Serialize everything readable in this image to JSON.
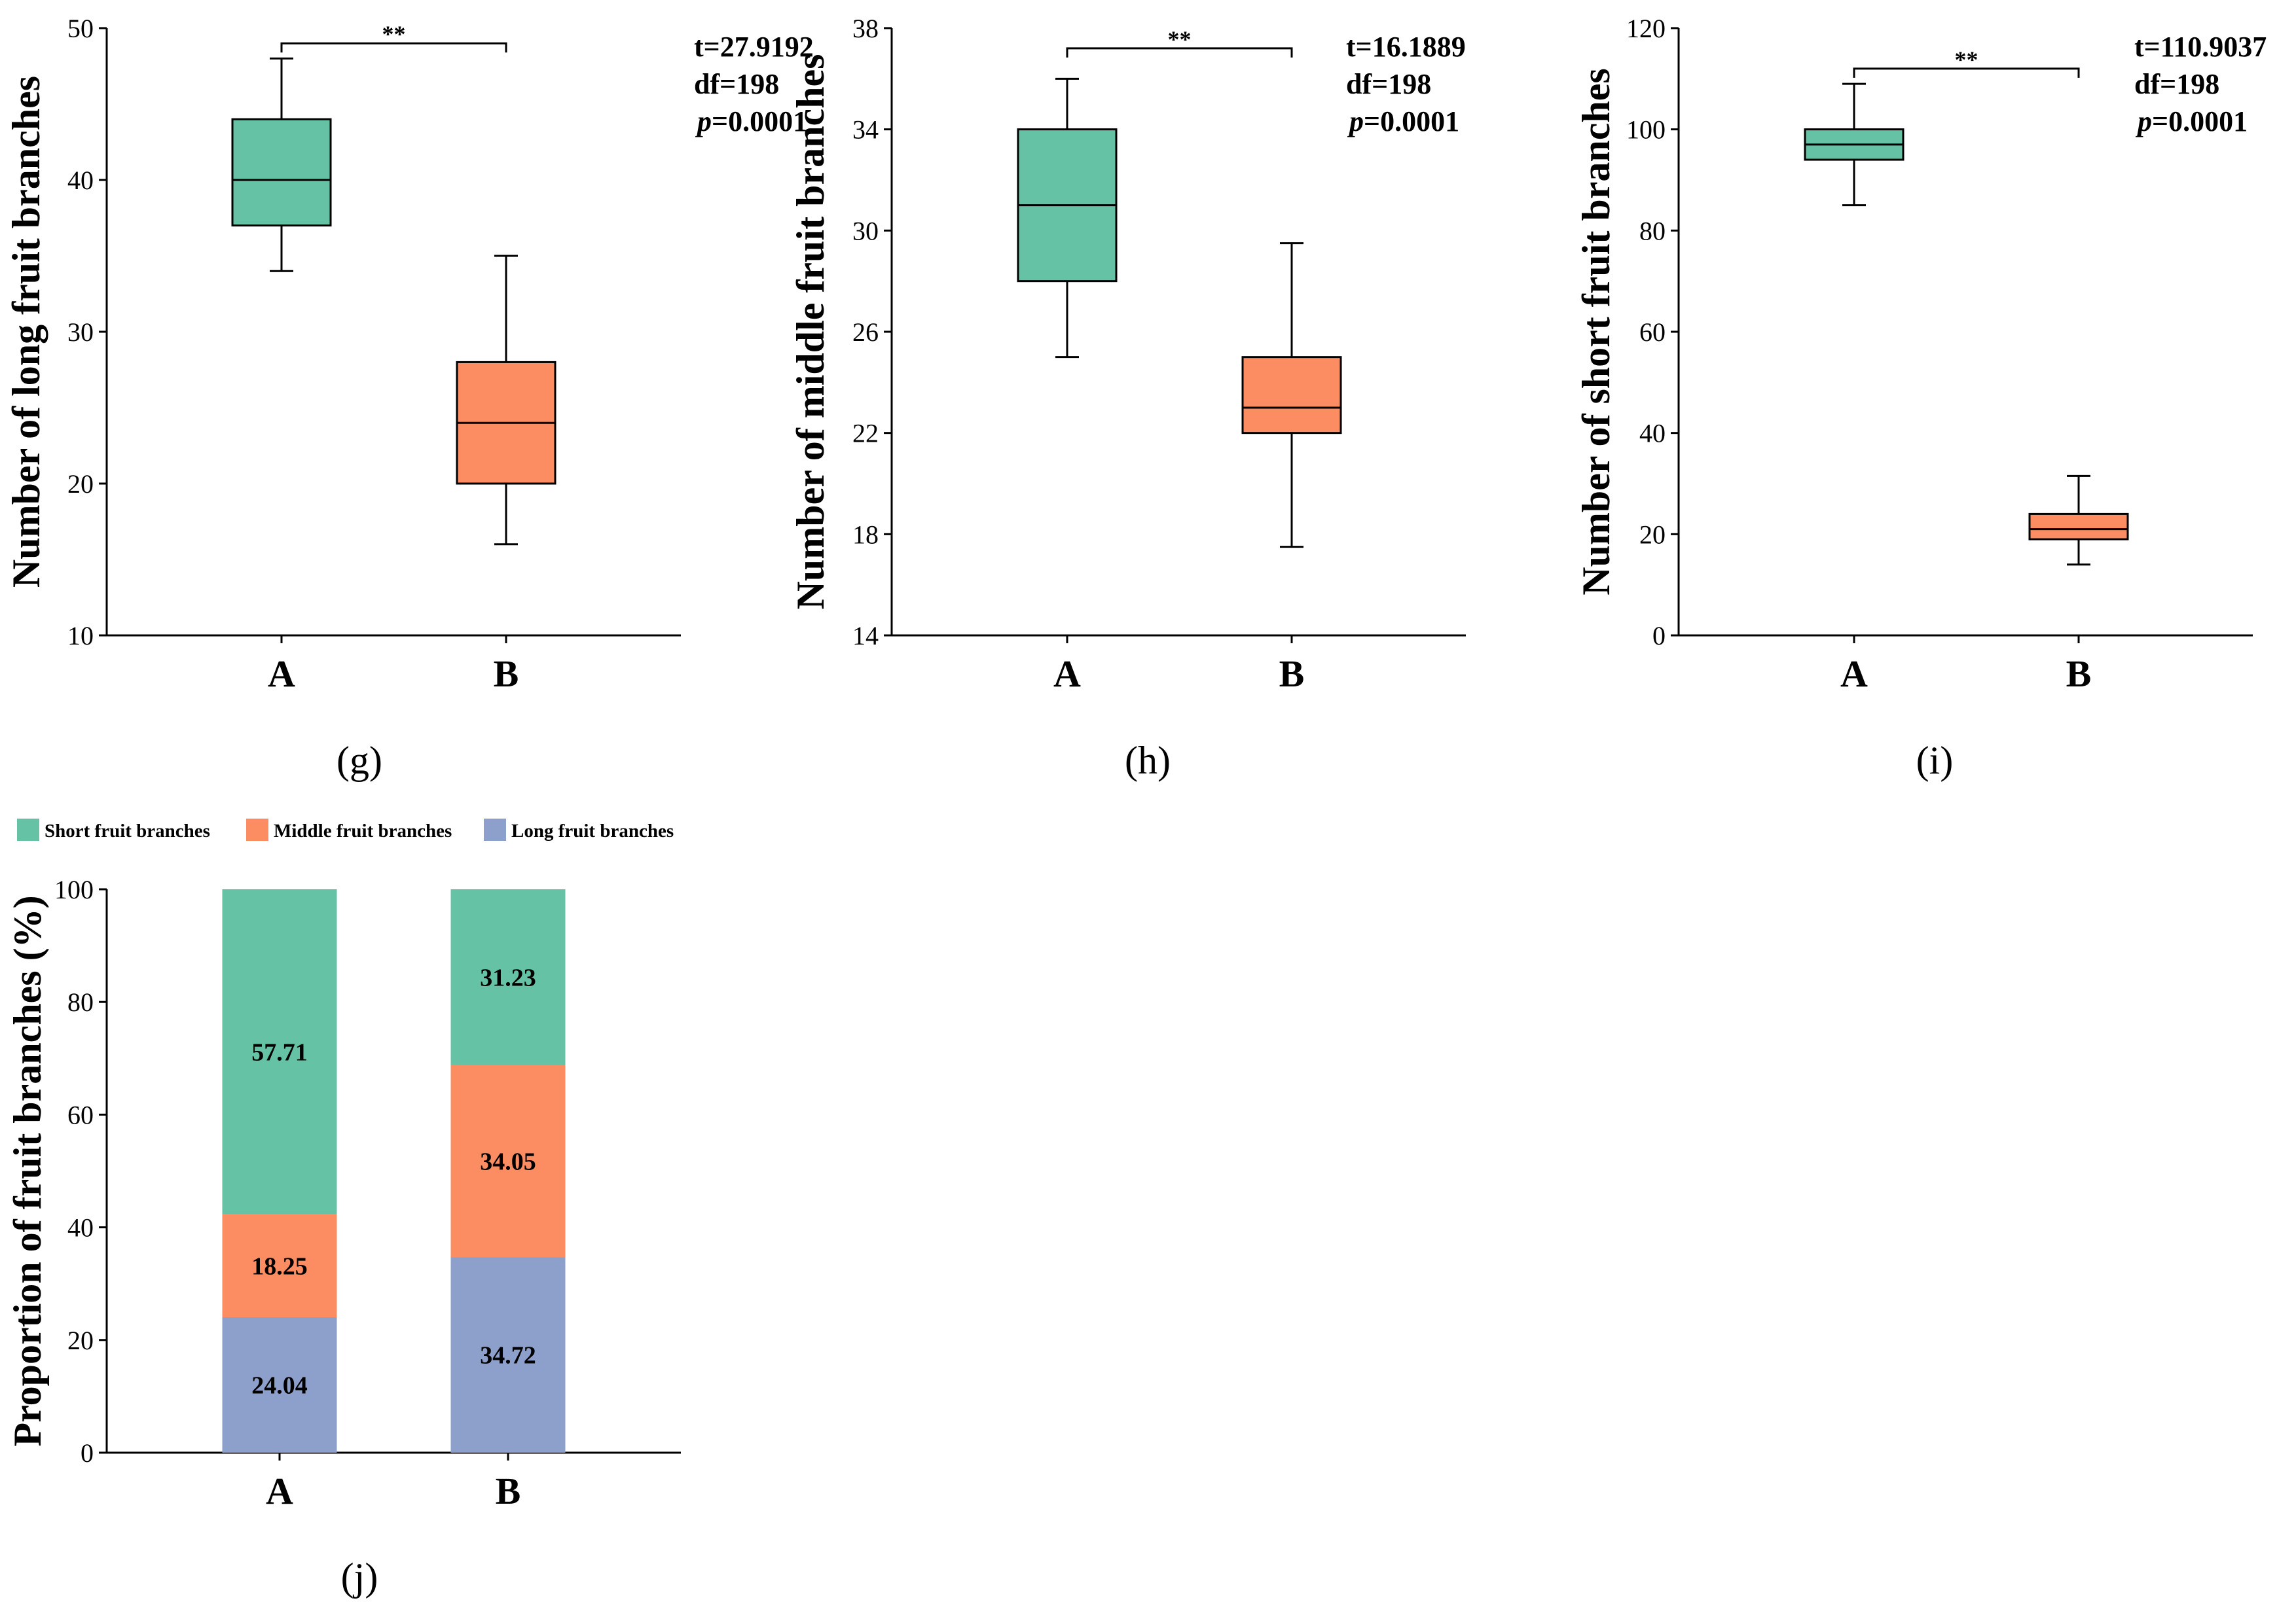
{
  "colors": {
    "group_A": "#66C2A5",
    "group_B": "#FC8D62",
    "long": "#8DA0CB",
    "axis": "#000000"
  },
  "chart_data": [
    {
      "id": "g",
      "type": "box",
      "panel_label": "(g)",
      "ylabel": "Number of long fruit branches",
      "ylim": [
        10,
        50
      ],
      "yticks": [
        10,
        20,
        30,
        40,
        50
      ],
      "categories": [
        "A",
        "B"
      ],
      "boxes": [
        {
          "group": "A",
          "min": 34,
          "q1": 37,
          "median": 40,
          "q3": 44,
          "max": 48
        },
        {
          "group": "B",
          "min": 16,
          "q1": 20,
          "median": 24,
          "q3": 28,
          "max": 35
        }
      ],
      "bracket_y": 49,
      "significance": "**",
      "stats": {
        "t": "t=27.9192",
        "df": "df=198",
        "p_prefix": "p",
        "p_value": "=0.0001"
      }
    },
    {
      "id": "h",
      "type": "box",
      "panel_label": "(h)",
      "ylabel": "Number of middle fruit branches",
      "ylim": [
        14,
        38
      ],
      "yticks": [
        14,
        18,
        22,
        26,
        30,
        34,
        38
      ],
      "categories": [
        "A",
        "B"
      ],
      "boxes": [
        {
          "group": "A",
          "min": 25,
          "q1": 28,
          "median": 31,
          "q3": 34,
          "max": 36
        },
        {
          "group": "B",
          "min": 17.5,
          "q1": 22,
          "median": 23,
          "q3": 25,
          "max": 29.5
        }
      ],
      "bracket_y": 37.2,
      "significance": "**",
      "stats": {
        "t": "t=16.1889",
        "df": "df=198",
        "p_prefix": "p",
        "p_value": "=0.0001"
      }
    },
    {
      "id": "i",
      "type": "box",
      "panel_label": "(i)",
      "ylabel": "Number of short fruit branches",
      "ylim": [
        0,
        120
      ],
      "yticks": [
        0,
        20,
        40,
        60,
        80,
        100,
        120
      ],
      "categories": [
        "A",
        "B"
      ],
      "boxes": [
        {
          "group": "A",
          "min": 85,
          "q1": 94,
          "median": 97,
          "q3": 100,
          "max": 109
        },
        {
          "group": "B",
          "min": 14,
          "q1": 19,
          "median": 21,
          "q3": 24,
          "max": 31.5
        }
      ],
      "bracket_y": 112,
      "significance": "**",
      "stats": {
        "t": "t=110.9037",
        "df": "df=198",
        "p_prefix": "p",
        "p_value": "=0.0001"
      }
    },
    {
      "id": "j",
      "type": "stacked_bar",
      "panel_label": "(j)",
      "ylabel": "Proportion of fruit branches (%)",
      "ylim": [
        0,
        100
      ],
      "yticks": [
        0,
        20,
        40,
        60,
        80,
        100
      ],
      "categories": [
        "A",
        "B"
      ],
      "legend": [
        "Short fruit branches",
        "Middle fruit branches",
        "Long fruit branches"
      ],
      "series": [
        {
          "name": "Long fruit branches",
          "color": "#8DA0CB",
          "values": [
            24.04,
            34.72
          ]
        },
        {
          "name": "Middle fruit branches",
          "color": "#FC8D62",
          "values": [
            18.25,
            34.05
          ]
        },
        {
          "name": "Short fruit branches",
          "color": "#66C2A5",
          "values": [
            57.71,
            31.23
          ]
        }
      ]
    }
  ]
}
